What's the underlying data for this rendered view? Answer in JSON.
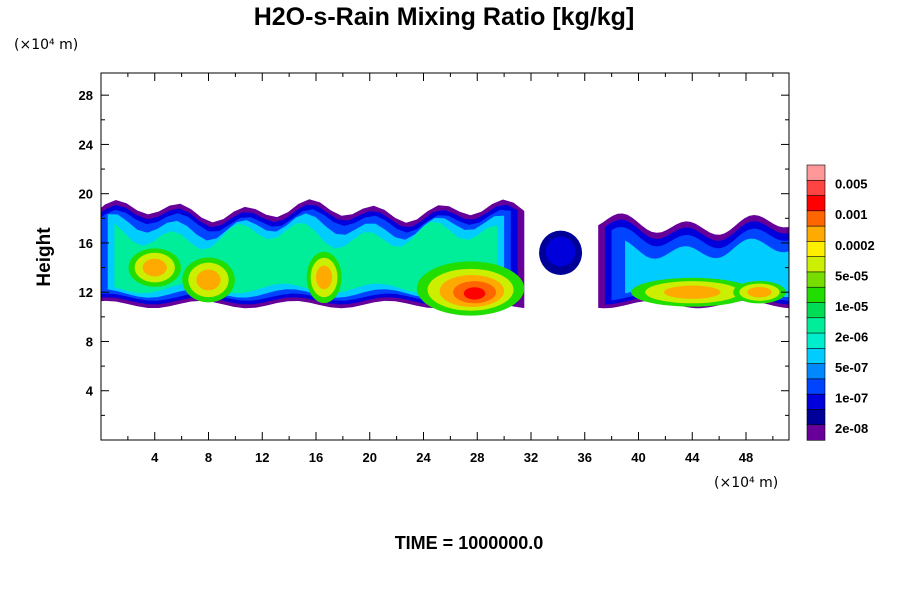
{
  "chart_data": {
    "type": "heatmap",
    "title": "H2O-s-Rain Mixing Ratio [kg/kg]",
    "xlabel": "",
    "ylabel": "Height",
    "x_unit_label": "(×10⁴ m)",
    "y_unit_label": "(×10⁴ m)",
    "x_ticks": [
      "4",
      "8",
      "12",
      "16",
      "20",
      "24",
      "28",
      "32",
      "36",
      "40",
      "44",
      "48"
    ],
    "y_ticks": [
      "4",
      "8",
      "12",
      "16",
      "20",
      "24",
      "28"
    ],
    "xlim": [
      0,
      51.2
    ],
    "ylim": [
      0,
      29.8
    ],
    "colorbar": {
      "labels": [
        "0.005",
        "0.001",
        "0.0002",
        "5e-05",
        "1e-05",
        "2e-06",
        "5e-07",
        "1e-07",
        "2e-08"
      ],
      "colors": [
        "#ff9999",
        "#ff4444",
        "#ff0000",
        "#ff6600",
        "#ffaa00",
        "#ffee00",
        "#ccee00",
        "#77dd00",
        "#22dd00",
        "#00dd55",
        "#00ee99",
        "#00eecc",
        "#00ccff",
        "#0088ff",
        "#0044ff",
        "#0000dd",
        "#000099",
        "#660099"
      ]
    },
    "field_description": "rain band between heights 11 and 19, gap near x 31-38, isolated cell near x 34",
    "structure": [
      {
        "x": [
          0,
          31.5
        ],
        "y_bottom": 11,
        "y_top": 18.5,
        "level": "1e-07"
      },
      {
        "x": [
          33,
          35.5
        ],
        "y_bottom": 13.5,
        "y_top": 16.8,
        "level": "2e-08"
      },
      {
        "x": [
          37,
          51.2
        ],
        "y_bottom": 11,
        "y_top": 17.5,
        "level": "1e-07"
      },
      {
        "x": [
          26,
          30
        ],
        "y_center": 12,
        "level": "0.001",
        "peak": true
      },
      {
        "x": [
          7,
          9
        ],
        "y_center": 13,
        "level": "5e-05"
      },
      {
        "x": [
          16,
          17.5
        ],
        "y_center": 13.5,
        "level": "5e-05"
      },
      {
        "x": [
          40,
          50
        ],
        "y_center": 12,
        "level": "5e-05"
      }
    ],
    "footer": "TIME = 1000000.0"
  }
}
